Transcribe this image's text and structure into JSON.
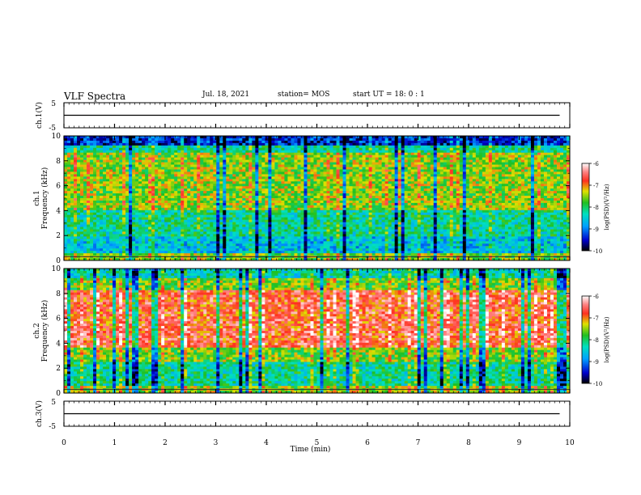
{
  "header": {
    "title": "VLF Spectra",
    "date": "Jul. 18, 2021",
    "station": "station= MOS",
    "start": "start UT = 18: 0 : 1"
  },
  "chart_data": [
    {
      "type": "line",
      "panel": "waveform-ch1",
      "ylabel": "ch.1(V)",
      "ylim": [
        -5,
        5
      ],
      "yticks": [
        "5",
        "-5"
      ],
      "x": [
        0,
        9.8
      ],
      "values": [
        0,
        0
      ],
      "xlim": [
        0,
        10
      ]
    },
    {
      "type": "heatmap",
      "panel": "spectrogram-ch1",
      "ylabel_line1": "ch.1",
      "ylabel_line2": "Frequency (kHz)",
      "ylim": [
        0,
        10
      ],
      "yticks": [
        "0",
        "2",
        "4",
        "6",
        "8",
        "10"
      ],
      "xlim": [
        0,
        10
      ],
      "colorbar": {
        "label": "log(PSD)(V²/Hz)",
        "range": [
          -10,
          -6
        ],
        "ticks": [
          "-6",
          "-7",
          "-8",
          "-9",
          "-10"
        ]
      }
    },
    {
      "type": "heatmap",
      "panel": "spectrogram-ch2",
      "ylabel_line1": "ch.2",
      "ylabel_line2": "Frequency (kHz)",
      "ylim": [
        0,
        10
      ],
      "yticks": [
        "0",
        "2",
        "4",
        "6",
        "8",
        "10"
      ],
      "xlim": [
        0,
        10
      ],
      "colorbar": {
        "label": "log(PSD)(V²/Hz)",
        "range": [
          -10,
          -6
        ],
        "ticks": [
          "-6",
          "-7",
          "-8",
          "-9",
          "-10"
        ]
      }
    },
    {
      "type": "line",
      "panel": "waveform-ch3",
      "ylabel": "ch.3(V)",
      "ylim": [
        -5,
        5
      ],
      "yticks": [
        "5",
        "-5"
      ],
      "x": [
        0,
        9.8
      ],
      "values": [
        0,
        0
      ],
      "xlim": [
        0,
        10
      ]
    }
  ],
  "x_axis": {
    "label": "Time (min)",
    "ticks": [
      "0",
      "1",
      "2",
      "3",
      "4",
      "5",
      "6",
      "7",
      "8",
      "9",
      "10"
    ]
  }
}
